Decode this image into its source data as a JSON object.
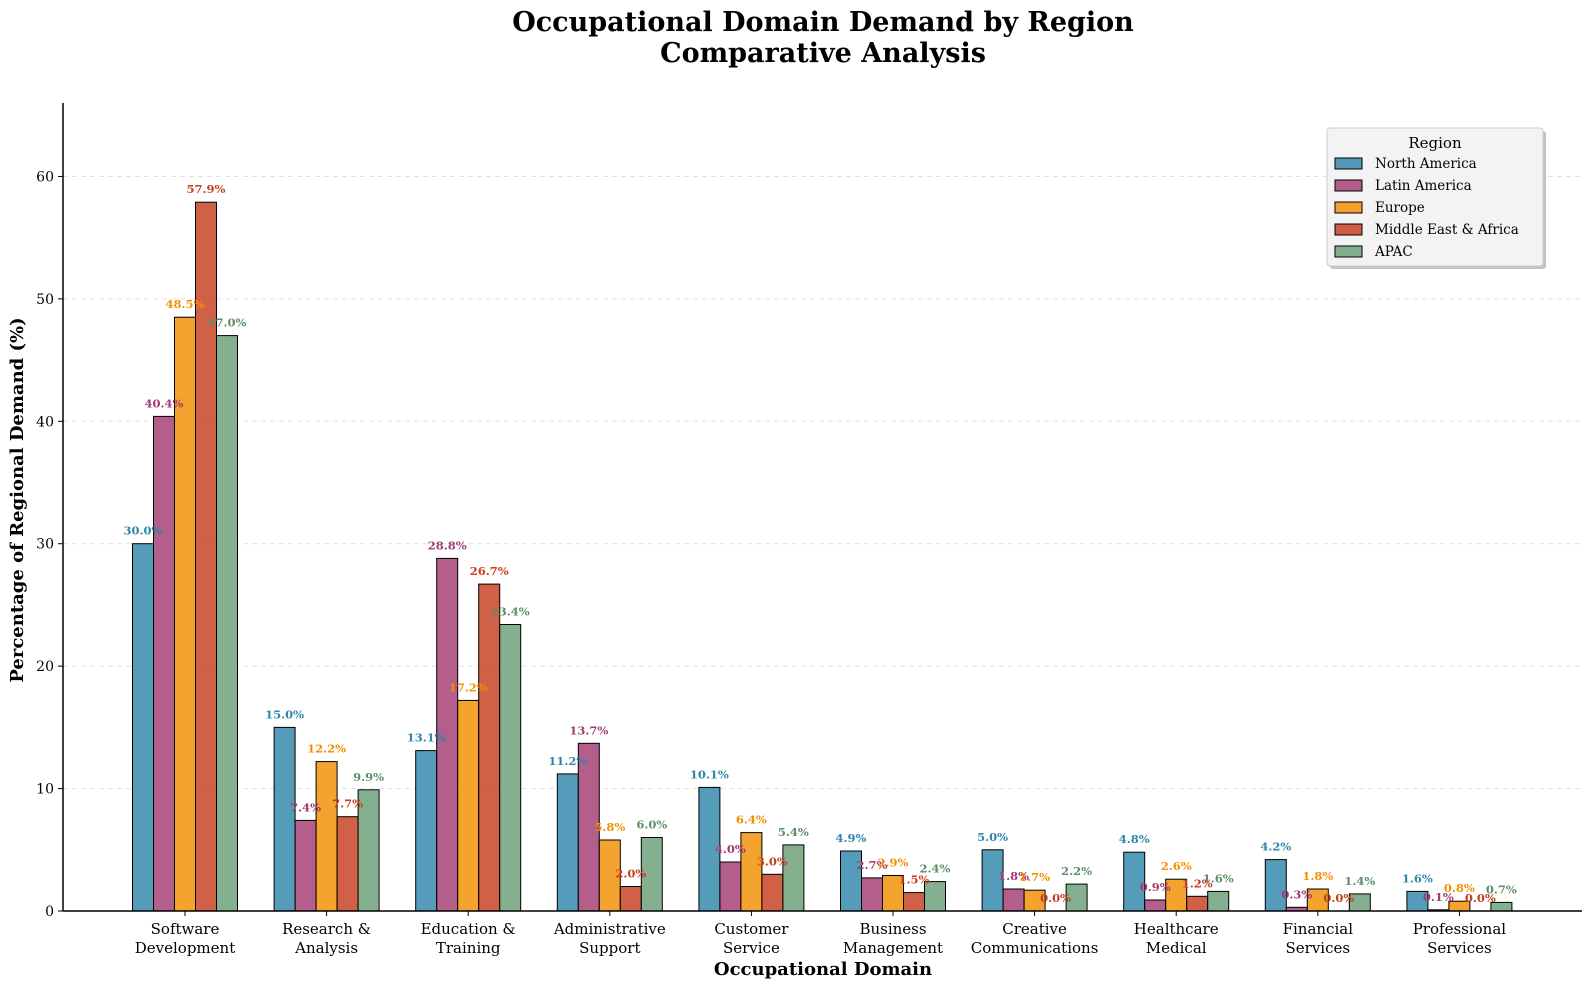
{
  "chart_data": {
    "type": "bar",
    "title_line1": "Occupational Domain Demand by Region",
    "title_line2": "Comparative Analysis",
    "xlabel": "Occupational Domain",
    "ylabel": "Percentage of Regional Demand (%)",
    "ylim": [
      0,
      66
    ],
    "yticks": [
      0,
      10,
      20,
      30,
      40,
      50,
      60
    ],
    "grid": true,
    "legend": {
      "title": "Region",
      "placement": "top-right"
    },
    "categories": [
      [
        "Software",
        "Development"
      ],
      [
        "Research &",
        "Analysis"
      ],
      [
        "Education &",
        "Training"
      ],
      [
        "Administrative",
        "Support"
      ],
      [
        "Customer",
        "Service"
      ],
      [
        "Business",
        "Management"
      ],
      [
        "Creative",
        "Communications"
      ],
      [
        "Healthcare",
        "Medical"
      ],
      [
        "Financial",
        "Services"
      ],
      [
        "Professional",
        "Services"
      ]
    ],
    "series": [
      {
        "name": "North America",
        "color": "#2E86AB",
        "label_color": "#2E86AB",
        "values": [
          30.0,
          15.0,
          13.1,
          11.2,
          10.1,
          4.9,
          5.0,
          4.8,
          4.2,
          1.6
        ],
        "labels": [
          "30.0%",
          "15.0%",
          "13.1%",
          "11.2%",
          "10.1%",
          "4.9%",
          "5.0%",
          "4.8%",
          "4.2%",
          "1.6%"
        ]
      },
      {
        "name": "Latin America",
        "color": "#A23B72",
        "label_color": "#A23B72",
        "values": [
          40.4,
          7.4,
          28.8,
          13.7,
          4.0,
          2.7,
          1.8,
          0.9,
          0.3,
          0.1
        ],
        "labels": [
          "40.4%",
          "7.4%",
          "28.8%",
          "13.7%",
          "4.0%",
          "2.7%",
          "1.8%",
          "0.9%",
          "0.3%",
          "0.1%"
        ]
      },
      {
        "name": "Europe",
        "color": "#F18F01",
        "label_color": "#F18F01",
        "values": [
          48.5,
          12.2,
          17.2,
          5.8,
          6.4,
          2.9,
          1.7,
          2.6,
          1.8,
          0.8
        ],
        "labels": [
          "48.5%",
          "12.2%",
          "17.2%",
          "5.8%",
          "6.4%",
          "2.9%",
          "1.7%",
          "2.6%",
          "1.8%",
          "0.8%"
        ]
      },
      {
        "name": "Middle East & Africa",
        "color": "#C73E1D",
        "label_color": "#C73E1D",
        "values": [
          57.9,
          7.7,
          26.7,
          2.0,
          3.0,
          1.5,
          0.0,
          1.2,
          0.0,
          0.0
        ],
        "labels": [
          "57.9%",
          "7.7%",
          "26.7%",
          "2.0%",
          "3.0%",
          "1.5%",
          "0.0%",
          "1.2%",
          "0.0%",
          "0.0%"
        ]
      },
      {
        "name": "APAC",
        "color": "#6A9F78",
        "label_color": "#5A8F68",
        "values": [
          47.0,
          9.9,
          23.4,
          6.0,
          5.4,
          2.4,
          2.2,
          1.6,
          1.4,
          0.7
        ],
        "labels": [
          "47.0%",
          "9.9%",
          "23.4%",
          "6.0%",
          "5.4%",
          "2.4%",
          "2.2%",
          "1.6%",
          "1.4%",
          "0.7%"
        ]
      }
    ]
  }
}
